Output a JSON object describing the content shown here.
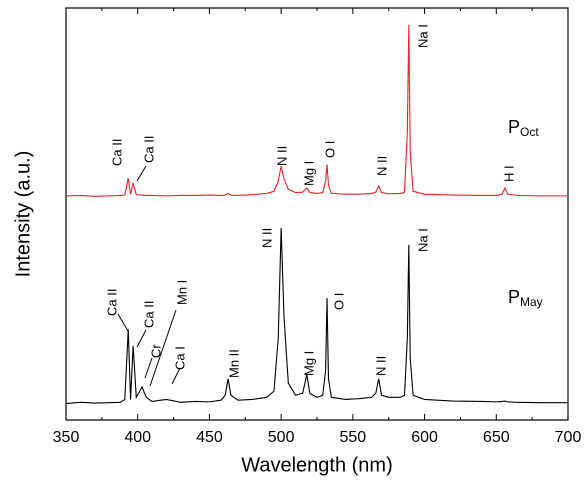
{
  "chart_data": {
    "type": "line",
    "xlabel": "Wavelength (nm)",
    "ylabel": "Intensity (a.u.)",
    "xlim": [
      350,
      700
    ],
    "xticks": [
      350,
      400,
      450,
      500,
      550,
      600,
      650,
      700
    ],
    "ylim": [
      0,
      100
    ],
    "x": [
      350,
      360,
      370,
      380,
      388,
      391,
      393.4,
      395,
      396.8,
      399,
      403,
      406,
      410,
      420,
      430,
      440,
      450,
      458,
      461,
      463,
      465,
      470,
      480,
      490,
      495,
      498,
      500,
      502,
      505,
      510,
      515,
      517.9,
      520,
      525,
      529,
      531,
      532,
      533,
      535,
      545,
      555,
      563,
      566,
      568,
      570,
      575,
      583,
      586,
      588,
      589,
      590,
      592,
      600,
      620,
      640,
      650,
      654,
      656,
      658,
      665,
      680,
      700
    ],
    "series": [
      {
        "name": "P",
        "subscript": "Oct",
        "color": "#e8202a",
        "values": [
          54.4,
          54.5,
          54.3,
          54.4,
          54.5,
          54.6,
          58.7,
          54.8,
          57.5,
          54.7,
          54.6,
          54.5,
          54.5,
          54.4,
          54.5,
          54.5,
          54.6,
          54.5,
          54.6,
          55,
          54.6,
          54.5,
          54.7,
          55,
          55.5,
          58,
          61.6,
          58.5,
          56,
          55.2,
          55.3,
          56.3,
          55.2,
          55,
          55.2,
          58,
          62,
          57,
          55,
          54.8,
          54.8,
          55,
          55.3,
          56.8,
          55.2,
          54.9,
          55,
          55.2,
          70,
          95.9,
          65,
          55.5,
          54.8,
          54.6,
          54.5,
          54.5,
          54.8,
          56.3,
          54.8,
          54.5,
          54.4,
          54.4
        ]
      },
      {
        "name": "P",
        "subscript": "May",
        "color": "#000000",
        "values": [
          4,
          4.3,
          4.1,
          4.2,
          4.3,
          5,
          22,
          5,
          18,
          5.5,
          8,
          5.5,
          4.5,
          5,
          4.3,
          4.5,
          4.4,
          4.8,
          6,
          10,
          6,
          4.8,
          5,
          5.5,
          7,
          20,
          46.6,
          25,
          9,
          6,
          6.5,
          11,
          6.5,
          5.5,
          6,
          12,
          29.6,
          10,
          5.5,
          5,
          5.2,
          5.5,
          6.5,
          10,
          6,
          5.5,
          5.5,
          6,
          20,
          42.5,
          15,
          6,
          5,
          4.6,
          4.5,
          4.4,
          4.5,
          4.6,
          4.4,
          4.3,
          4.2,
          4.2
        ]
      }
    ],
    "annotations": [
      "Ca II",
      "Ca II",
      "N II",
      "Mg I",
      "O I",
      "N II",
      "Na I",
      "H I",
      "Ca II",
      "Ca II",
      "Cr",
      "Mn I",
      "Ca I",
      "Mn II",
      "N II",
      "Mg I",
      "O I",
      "N II",
      "Na I"
    ]
  }
}
